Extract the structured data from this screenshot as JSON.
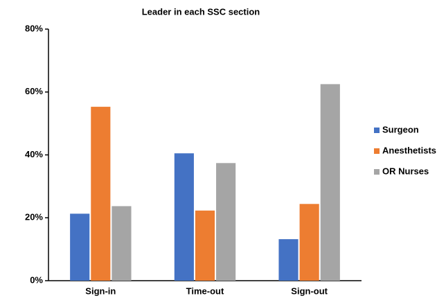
{
  "chart_data": {
    "type": "bar",
    "title": "Leader in each SSC section",
    "categories": [
      "Sign-in",
      "Time-out",
      "Sign-out"
    ],
    "series": [
      {
        "name": "Surgeon",
        "color": "#4472c4",
        "values": [
          21.3,
          40.5,
          13.2
        ]
      },
      {
        "name": "Anesthetists",
        "color": "#ed7d31",
        "values": [
          55.3,
          22.3,
          24.4
        ]
      },
      {
        "name": "OR Nurses",
        "color": "#a5a5a5",
        "values": [
          23.7,
          37.4,
          62.5
        ]
      }
    ],
    "ylim": [
      0,
      80
    ],
    "yticks": [
      {
        "value": 0,
        "label": "0%"
      },
      {
        "value": 20,
        "label": "20%"
      },
      {
        "value": 40,
        "label": "40%"
      },
      {
        "value": 60,
        "label": "60%"
      },
      {
        "value": 80,
        "label": "80%"
      }
    ],
    "grid": false,
    "legend": "right"
  }
}
